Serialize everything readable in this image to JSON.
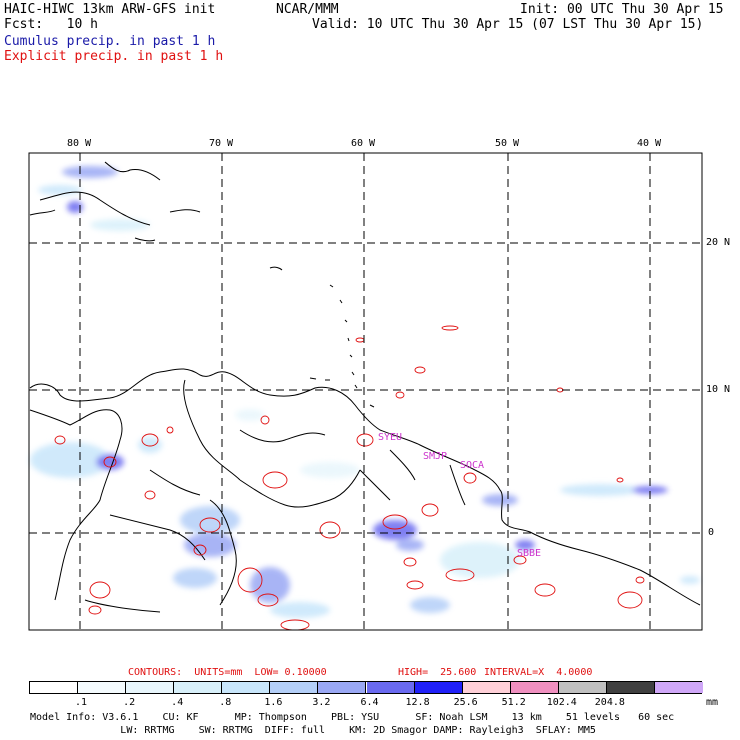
{
  "header": {
    "model": "HAIC-HIWC 13km ARW-GFS init",
    "org": "NCAR/MMM",
    "init": "Init: 00 UTC Thu 30 Apr 15",
    "fcst": "Fcst:   10 h",
    "valid": "Valid: 10 UTC Thu 30 Apr 15 (07 LST Thu 30 Apr 15)",
    "line_cumulus": "Cumulus precip. in past 1 h",
    "line_explicit": "Explicit precip. in past 1 h"
  },
  "map": {
    "lon_labels": [
      "80 W",
      "70 W",
      "60 W",
      "50 W",
      "40 W"
    ],
    "lat_labels": [
      "20 N",
      "10 N",
      "0"
    ],
    "stations": [
      "SYEU",
      "SMJP",
      "SOCA",
      "SBBE"
    ],
    "colors": {
      "coast": "#000000",
      "grid": "#000000",
      "explicit": "#e01010",
      "station": "#cc33cc"
    }
  },
  "contours_line": {
    "label": "CONTOURS:  UNITS=mm  LOW= 0.10000",
    "high": "HIGH=  25.600",
    "interval": "INTERVAL=X  4.0000"
  },
  "colorbar": {
    "colors": [
      "#ffffff",
      "#f4fbfe",
      "#e8f6fc",
      "#d8f0fa",
      "#c8e6fb",
      "#b4cff8",
      "#9aa8f4",
      "#6a6af0",
      "#2020f8",
      "#ffd0d8",
      "#f090c0",
      "#c0c0c0",
      "#404040",
      "#d0a8f8"
    ],
    "labels": [
      ".1",
      ".2",
      ".4",
      ".8",
      "1.6",
      "3.2",
      "6.4",
      "12.8",
      "25.6",
      "51.2",
      "102.4",
      "204.8"
    ],
    "unit": "mm"
  },
  "footer": {
    "line1": "Model Info: V3.6.1    CU: KF      MP: Thompson    PBL: YSU      SF: Noah LSM    13 km    51 levels   60 sec",
    "line2": "               LW: RRTMG    SW: RRTMG  DIFF: full    KM: 2D Smagor DAMP: Rayleigh3  SFLAY: MM5"
  }
}
